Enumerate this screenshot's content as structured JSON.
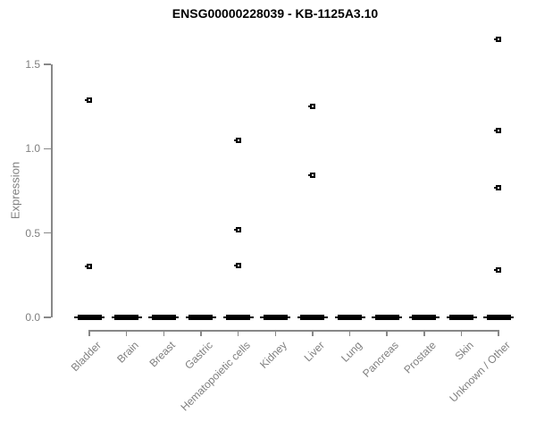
{
  "chart_data": {
    "type": "boxplot",
    "title": "ENSG00000228039 - KB-1125A3.10",
    "xlabel": "",
    "ylabel": "Expression",
    "categories": [
      "Bladder",
      "Brain",
      "Breast",
      "Gastric",
      "Hematopoietic cells",
      "Kidney",
      "Liver",
      "Lung",
      "Pancreas",
      "Prostate",
      "Skin",
      "Unknown / Other"
    ],
    "yticks": [
      0.0,
      0.5,
      1.0,
      1.5
    ],
    "ylim": [
      0,
      1.72
    ],
    "grid": false,
    "legend": "none",
    "series": [
      {
        "category": "Bladder",
        "median": 0,
        "q1": 0,
        "q3": 0,
        "whisker_low": 0,
        "whisker_high": 0,
        "outliers": [
          1.29,
          0.3
        ]
      },
      {
        "category": "Brain",
        "median": 0,
        "q1": 0,
        "q3": 0,
        "whisker_low": 0,
        "whisker_high": 0,
        "outliers": []
      },
      {
        "category": "Breast",
        "median": 0,
        "q1": 0,
        "q3": 0,
        "whisker_low": 0,
        "whisker_high": 0,
        "outliers": []
      },
      {
        "category": "Gastric",
        "median": 0,
        "q1": 0,
        "q3": 0,
        "whisker_low": 0,
        "whisker_high": 0,
        "outliers": []
      },
      {
        "category": "Hematopoietic cells",
        "median": 0,
        "q1": 0,
        "q3": 0,
        "whisker_low": 0,
        "whisker_high": 0,
        "outliers": [
          1.05,
          0.52,
          0.31
        ]
      },
      {
        "category": "Kidney",
        "median": 0,
        "q1": 0,
        "q3": 0,
        "whisker_low": 0,
        "whisker_high": 0,
        "outliers": []
      },
      {
        "category": "Liver",
        "median": 0,
        "q1": 0,
        "q3": 0,
        "whisker_low": 0,
        "whisker_high": 0,
        "outliers": [
          1.25,
          0.84
        ]
      },
      {
        "category": "Lung",
        "median": 0,
        "q1": 0,
        "q3": 0,
        "whisker_low": 0,
        "whisker_high": 0,
        "outliers": []
      },
      {
        "category": "Pancreas",
        "median": 0,
        "q1": 0,
        "q3": 0,
        "whisker_low": 0,
        "whisker_high": 0,
        "outliers": []
      },
      {
        "category": "Prostate",
        "median": 0,
        "q1": 0,
        "q3": 0,
        "whisker_low": 0,
        "whisker_high": 0,
        "outliers": []
      },
      {
        "category": "Skin",
        "median": 0,
        "q1": 0,
        "q3": 0,
        "whisker_low": 0,
        "whisker_high": 0,
        "outliers": []
      },
      {
        "category": "Unknown / Other",
        "median": 0,
        "q1": 0,
        "q3": 0,
        "whisker_low": 0,
        "whisker_high": 0,
        "outliers": [
          1.65,
          1.11,
          0.77,
          0.28
        ]
      }
    ],
    "colors": {
      "title": "#000000",
      "axis": "#888888",
      "tick_text": "#7f7f7f",
      "box": "#000000",
      "outlier_marker": "#000000"
    }
  }
}
